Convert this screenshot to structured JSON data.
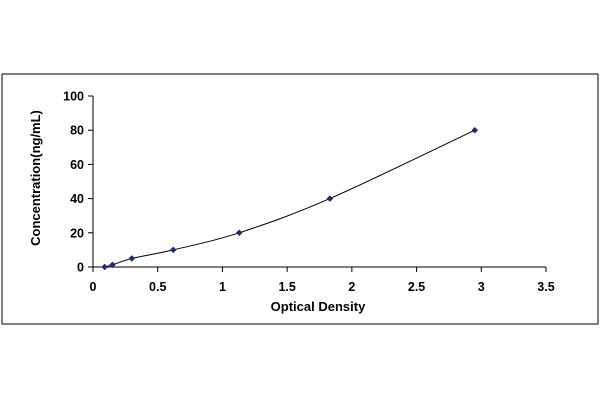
{
  "chart_data": {
    "type": "scatter",
    "title": "",
    "xlabel": "Optical Density",
    "ylabel": "Concentration(ng/mL)",
    "xlim": [
      0,
      3.5
    ],
    "ylim": [
      0,
      100
    ],
    "x_ticks": [
      0,
      0.5,
      1,
      1.5,
      2,
      2.5,
      3,
      3.5
    ],
    "x_tick_labels": [
      "0",
      "0.5",
      "1",
      "1.5",
      "2",
      "2.5",
      "3",
      "3.5"
    ],
    "y_ticks": [
      0,
      20,
      40,
      60,
      80,
      100
    ],
    "y_tick_labels": [
      "0",
      "20",
      "40",
      "60",
      "80",
      "100"
    ],
    "grid": false,
    "legend": "none",
    "x": [
      0.09,
      0.15,
      0.3,
      0.62,
      1.13,
      1.83,
      2.95
    ],
    "y": [
      0,
      1.25,
      5,
      10,
      20,
      40,
      80
    ],
    "trendline": true,
    "colors": {
      "marker": "#1b2a7a",
      "line": "#000000",
      "axis": "#000000",
      "frame": "#000000"
    }
  }
}
